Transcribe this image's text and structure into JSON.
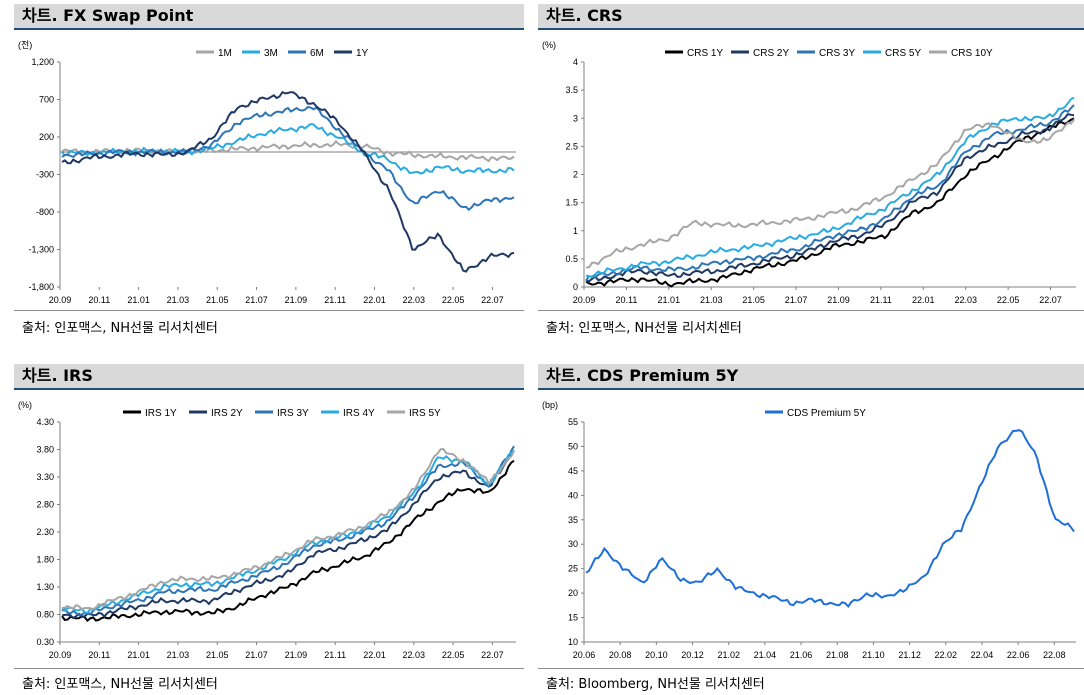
{
  "colors": {
    "c1": "#a6a6a6",
    "c2": "#29abe2",
    "c3": "#2e75b6",
    "c4": "#1f3864",
    "c5": "#000000",
    "cds": "#1f6fd9"
  },
  "panels": [
    {
      "title": "차트. FX Swap Point",
      "source": "출처: 인포맥스, NH선물 리서치센터",
      "chart_data": {
        "type": "line",
        "unit": "(전)",
        "x_ticks": [
          "20.09",
          "20.11",
          "21.01",
          "21.03",
          "21.05",
          "21.07",
          "21.09",
          "21.11",
          "22.01",
          "22.03",
          "22.05",
          "22.07"
        ],
        "y_ticks": [
          "1,200",
          "700",
          "200",
          "-300",
          "-800",
          "-1,300",
          "-1,800"
        ],
        "ylim": [
          -1800,
          1200
        ],
        "legend": "top-center",
        "series": [
          {
            "name": "1M",
            "color_key": "c1",
            "values": [
              10,
              0,
              10,
              20,
              10,
              0,
              20,
              40,
              60,
              80,
              90,
              100,
              80,
              -10,
              -40,
              -60,
              -70,
              -80,
              -90
            ]
          },
          {
            "name": "3M",
            "color_key": "c2",
            "values": [
              -10,
              -10,
              0,
              10,
              10,
              0,
              50,
              150,
              250,
              300,
              350,
              200,
              0,
              -100,
              -300,
              -200,
              -250,
              -250,
              -240
            ]
          },
          {
            "name": "6M",
            "color_key": "c3",
            "values": [
              -40,
              -30,
              0,
              0,
              0,
              0,
              100,
              400,
              500,
              550,
              600,
              300,
              0,
              -250,
              -700,
              -500,
              -750,
              -650,
              -600
            ]
          },
          {
            "name": "1Y",
            "color_key": "c4",
            "values": [
              -150,
              -80,
              -50,
              -20,
              -40,
              0,
              200,
              600,
              700,
              800,
              650,
              400,
              0,
              -500,
              -1300,
              -1100,
              -1600,
              -1400,
              -1350
            ]
          }
        ]
      }
    },
    {
      "title": "차트. CRS",
      "source": "출처: 인포맥스, NH선물 리서치센터",
      "chart_data": {
        "type": "line",
        "unit": "(%)",
        "x_ticks": [
          "20.09",
          "20.11",
          "21.01",
          "21.03",
          "21.05",
          "21.07",
          "21.09",
          "21.11",
          "22.01",
          "22.03",
          "22.05",
          "22.07"
        ],
        "y_ticks": [
          "4",
          "3.5",
          "3",
          "2.5",
          "2",
          "1.5",
          "1",
          "0.5",
          "0"
        ],
        "ylim": [
          0,
          4
        ],
        "legend": "top-center",
        "series": [
          {
            "name": "CRS 1Y",
            "color_key": "c5",
            "values": [
              0.05,
              0.1,
              0.15,
              0.05,
              0.1,
              0.15,
              0.3,
              0.4,
              0.5,
              0.7,
              0.8,
              0.9,
              1.3,
              1.5,
              2.0,
              2.3,
              2.6,
              2.8,
              3.0
            ]
          },
          {
            "name": "CRS 2Y",
            "color_key": "c4",
            "values": [
              0.1,
              0.2,
              0.3,
              0.2,
              0.25,
              0.3,
              0.4,
              0.5,
              0.6,
              0.8,
              0.9,
              1.1,
              1.5,
              1.7,
              2.3,
              2.5,
              2.7,
              2.8,
              3.1
            ]
          },
          {
            "name": "CRS 3Y",
            "color_key": "c3",
            "values": [
              0.15,
              0.25,
              0.35,
              0.3,
              0.35,
              0.45,
              0.5,
              0.6,
              0.7,
              0.9,
              1.0,
              1.2,
              1.6,
              1.8,
              2.4,
              2.7,
              2.8,
              2.9,
              3.2
            ]
          },
          {
            "name": "CRS 5Y",
            "color_key": "c2",
            "values": [
              0.2,
              0.3,
              0.4,
              0.45,
              0.55,
              0.65,
              0.7,
              0.8,
              0.9,
              1.0,
              1.2,
              1.4,
              1.7,
              2.0,
              2.6,
              2.9,
              3.0,
              3.0,
              3.35
            ]
          },
          {
            "name": "CRS 10Y",
            "color_key": "c1",
            "values": [
              0.35,
              0.6,
              0.75,
              0.85,
              1.15,
              1.1,
              1.1,
              1.15,
              1.2,
              1.3,
              1.4,
              1.6,
              1.9,
              2.2,
              2.8,
              2.9,
              2.6,
              2.6,
              3.0
            ]
          }
        ]
      }
    },
    {
      "title": "차트. IRS",
      "source": "출처: 인포맥스, NH선물 리서치센터",
      "chart_data": {
        "type": "line",
        "unit": "(%)",
        "x_ticks": [
          "20.09",
          "20.11",
          "21.01",
          "21.03",
          "21.05",
          "21.07",
          "21.09",
          "21.11",
          "22.01",
          "22.03",
          "22.05",
          "22.07"
        ],
        "y_ticks": [
          "4.30",
          "3.80",
          "3.30",
          "2.80",
          "2.30",
          "1.80",
          "1.30",
          "0.80",
          "0.30"
        ],
        "ylim": [
          0.3,
          4.3
        ],
        "legend": "top-center",
        "series": [
          {
            "name": "IRS 1Y",
            "color_key": "c5",
            "values": [
              0.75,
              0.72,
              0.75,
              0.8,
              0.85,
              0.85,
              0.82,
              0.95,
              1.15,
              1.3,
              1.55,
              1.7,
              1.85,
              2.1,
              2.5,
              2.85,
              3.1,
              3.0,
              3.6
            ]
          },
          {
            "name": "IRS 2Y",
            "color_key": "c4",
            "values": [
              0.8,
              0.77,
              0.85,
              0.95,
              1.05,
              1.05,
              1.05,
              1.25,
              1.4,
              1.55,
              1.9,
              2.0,
              2.15,
              2.35,
              2.8,
              3.3,
              3.4,
              3.1,
              3.8
            ]
          },
          {
            "name": "IRS 3Y",
            "color_key": "c3",
            "values": [
              0.85,
              0.82,
              0.95,
              1.05,
              1.2,
              1.25,
              1.25,
              1.4,
              1.55,
              1.75,
              2.05,
              2.15,
              2.3,
              2.5,
              2.95,
              3.5,
              3.55,
              3.15,
              3.85
            ]
          },
          {
            "name": "IRS 4Y",
            "color_key": "c2",
            "values": [
              0.9,
              0.87,
              1.0,
              1.15,
              1.3,
              1.35,
              1.35,
              1.5,
              1.65,
              1.85,
              2.1,
              2.2,
              2.35,
              2.6,
              3.0,
              3.65,
              3.6,
              3.15,
              3.8
            ]
          },
          {
            "name": "IRS 5Y",
            "color_key": "c1",
            "values": [
              0.95,
              0.9,
              1.05,
              1.2,
              1.4,
              1.45,
              1.45,
              1.55,
              1.7,
              1.9,
              2.15,
              2.25,
              2.4,
              2.65,
              3.05,
              3.8,
              3.6,
              3.2,
              3.75
            ]
          }
        ]
      }
    },
    {
      "title": "차트. CDS Premium 5Y",
      "source": "출처: Bloomberg, NH선물 리서치센터",
      "chart_data": {
        "type": "line",
        "unit": "(bp)",
        "x_ticks": [
          "20.06",
          "20.08",
          "20.10",
          "20.12",
          "21.02",
          "21.04",
          "21.06",
          "21.08",
          "21.10",
          "21.12",
          "22.02",
          "22.04",
          "22.06",
          "22.08"
        ],
        "y_ticks": [
          "55",
          "50",
          "45",
          "40",
          "35",
          "30",
          "25",
          "20",
          "15",
          "10"
        ],
        "ylim": [
          10,
          55
        ],
        "legend": "top-center",
        "series": [
          {
            "name": "CDS Premium 5Y",
            "color_key": "cds",
            "values": [
              24,
              29,
              25,
              22,
              27,
              23,
              22,
              25,
              21,
              20,
              19,
              18,
              18.5,
              18,
              17.5,
              20,
              19,
              21,
              23,
              30,
              33,
              42,
              50,
              54,
              48,
              35,
              33
            ]
          }
        ]
      }
    }
  ]
}
